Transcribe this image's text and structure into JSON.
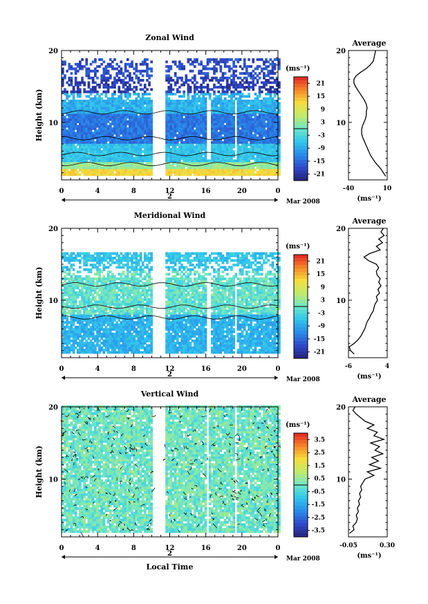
{
  "x_axis": {
    "ticks": [
      "0",
      "4",
      "8",
      "12",
      "16",
      "20",
      "0"
    ],
    "day_label": "2",
    "month_label": "Mar 2008",
    "xlabel": "Local Time"
  },
  "units_label": "(ms⁻¹)",
  "avg_xlabel": "(ms⁻¹)",
  "chart_data": [
    {
      "type": "heatmap",
      "title": "Zonal Wind",
      "ylabel": "Height (km)",
      "yticks": [
        "20",
        "10"
      ],
      "ylim": [
        2,
        20
      ],
      "xlim": [
        0,
        24
      ],
      "colorbar": {
        "labels": [
          "21",
          "15",
          "9",
          "3",
          "-3",
          "-9",
          "-15",
          "-21"
        ],
        "range": [
          -24,
          24
        ]
      },
      "profile": {
        "title": "Average",
        "xlim": [
          -40,
          10
        ],
        "xticks": [
          "-40",
          "10"
        ],
        "yticks": [
          "20",
          "10"
        ],
        "points": [
          [
            8,
            2.5
          ],
          [
            5,
            3.0
          ],
          [
            2,
            3.5
          ],
          [
            -2,
            4.0
          ],
          [
            -6,
            4.5
          ],
          [
            -9,
            5.0
          ],
          [
            -12,
            5.5
          ],
          [
            -14,
            6.0
          ],
          [
            -16,
            6.5
          ],
          [
            -18,
            7.0
          ],
          [
            -20,
            7.5
          ],
          [
            -22,
            8.0
          ],
          [
            -23,
            8.5
          ],
          [
            -23,
            9.0
          ],
          [
            -22,
            9.5
          ],
          [
            -20,
            10.0
          ],
          [
            -18,
            10.5
          ],
          [
            -17,
            11.0
          ],
          [
            -17,
            11.5
          ],
          [
            -16,
            12.0
          ],
          [
            -17,
            12.5
          ],
          [
            -19,
            13.0
          ],
          [
            -22,
            13.5
          ],
          [
            -25,
            14.0
          ],
          [
            -28,
            14.5
          ],
          [
            -31,
            15.0
          ],
          [
            -33,
            15.5
          ],
          [
            -33,
            16.0
          ],
          [
            -30,
            16.5
          ],
          [
            -24,
            17.0
          ],
          [
            -17,
            17.5
          ],
          [
            -12,
            18.0
          ],
          [
            -8,
            18.5
          ],
          [
            -7,
            19.0
          ],
          [
            -6,
            19.5
          ],
          [
            -5,
            20.0
          ]
        ]
      }
    },
    {
      "type": "heatmap",
      "title": "Meridional Wind",
      "ylabel": "Height (km)",
      "yticks": [
        "20",
        "10"
      ],
      "ylim": [
        2,
        20
      ],
      "xlim": [
        0,
        24
      ],
      "colorbar": {
        "labels": [
          "21",
          "15",
          "9",
          "3",
          "-3",
          "-9",
          "-15",
          "-21"
        ],
        "range": [
          -24,
          24
        ]
      },
      "profile": {
        "title": "Average",
        "xlim": [
          -6,
          4
        ],
        "xticks": [
          "-6",
          "4"
        ],
        "yticks": [
          "20",
          "10"
        ],
        "points": [
          [
            -4.5,
            2.5
          ],
          [
            -5.5,
            3.0
          ],
          [
            -5.8,
            3.5
          ],
          [
            -4.5,
            4.0
          ],
          [
            -3.5,
            4.5
          ],
          [
            -2.8,
            5.0
          ],
          [
            -2.3,
            5.5
          ],
          [
            -1.8,
            6.0
          ],
          [
            -1.5,
            6.5
          ],
          [
            -1.2,
            7.0
          ],
          [
            -0.6,
            7.5
          ],
          [
            -0.2,
            8.0
          ],
          [
            0.4,
            8.5
          ],
          [
            0.6,
            9.0
          ],
          [
            0.9,
            9.5
          ],
          [
            1.5,
            10.0
          ],
          [
            1.2,
            10.5
          ],
          [
            2.0,
            11.0
          ],
          [
            1.6,
            11.5
          ],
          [
            2.4,
            12.0
          ],
          [
            1.8,
            12.5
          ],
          [
            2.2,
            13.0
          ],
          [
            1.4,
            13.5
          ],
          [
            1.2,
            14.0
          ],
          [
            1.8,
            14.5
          ],
          [
            1.2,
            15.0
          ],
          [
            -0.8,
            15.5
          ],
          [
            -2.0,
            16.0
          ],
          [
            -0.5,
            16.5
          ],
          [
            2.2,
            17.0
          ],
          [
            1.2,
            17.5
          ],
          [
            2.8,
            18.0
          ],
          [
            1.8,
            18.5
          ],
          [
            3.2,
            19.0
          ],
          [
            2.4,
            19.5
          ],
          [
            3.0,
            20.0
          ]
        ]
      }
    },
    {
      "type": "heatmap",
      "title": "Vertical Wind",
      "ylabel": "Height (km)",
      "yticks": [
        "20",
        "10"
      ],
      "ylim": [
        2,
        20
      ],
      "xlim": [
        0,
        24
      ],
      "colorbar": {
        "labels": [
          "3.5",
          "2.5",
          "1.5",
          "0.5",
          "-0.5",
          "-1.5",
          "-2.5",
          "-3.5"
        ],
        "range": [
          -4,
          4
        ]
      },
      "profile": {
        "title": "Average",
        "xlim": [
          -0.05,
          0.3
        ],
        "xticks": [
          "-0.05",
          "0.30"
        ],
        "yticks": [
          "20",
          "10"
        ],
        "points": [
          [
            -0.04,
            2.5
          ],
          [
            0.0,
            3.0
          ],
          [
            -0.01,
            3.5
          ],
          [
            0.02,
            4.0
          ],
          [
            0.03,
            4.5
          ],
          [
            0.02,
            5.0
          ],
          [
            0.04,
            5.5
          ],
          [
            0.03,
            6.0
          ],
          [
            0.05,
            6.5
          ],
          [
            0.04,
            7.0
          ],
          [
            0.06,
            7.5
          ],
          [
            0.05,
            8.0
          ],
          [
            0.07,
            8.5
          ],
          [
            0.06,
            9.0
          ],
          [
            0.08,
            9.5
          ],
          [
            0.1,
            10.0
          ],
          [
            0.18,
            10.5
          ],
          [
            0.12,
            11.0
          ],
          [
            0.24,
            11.5
          ],
          [
            0.14,
            12.0
          ],
          [
            0.22,
            12.5
          ],
          [
            0.16,
            13.0
          ],
          [
            0.26,
            13.5
          ],
          [
            0.19,
            14.0
          ],
          [
            0.23,
            14.5
          ],
          [
            0.15,
            15.0
          ],
          [
            0.27,
            15.5
          ],
          [
            0.18,
            16.0
          ],
          [
            0.21,
            16.5
          ],
          [
            0.12,
            17.0
          ],
          [
            0.18,
            17.5
          ],
          [
            0.1,
            18.0
          ],
          [
            0.06,
            18.5
          ],
          [
            0.02,
            19.0
          ],
          [
            -0.01,
            19.5
          ],
          [
            0.01,
            20.0
          ]
        ]
      }
    }
  ]
}
